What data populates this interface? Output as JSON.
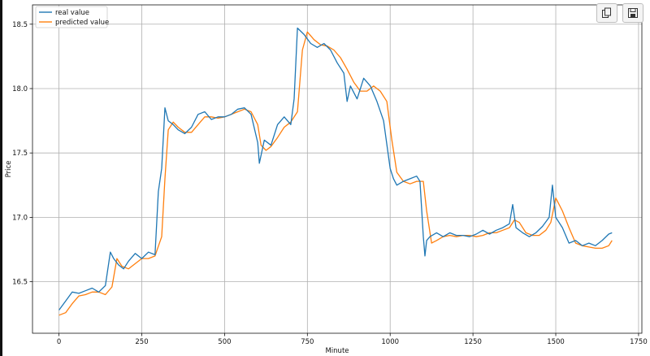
{
  "toolbar": {
    "copy_icon": "copy-icon",
    "save_icon": "save-icon"
  },
  "chart_data": {
    "type": "line",
    "title": "",
    "xlabel": "Minute",
    "ylabel": "Price",
    "xlim": [
      -80,
      1760
    ],
    "ylim": [
      16.1,
      18.65
    ],
    "xticks": [
      0,
      250,
      500,
      750,
      1000,
      1250,
      1500,
      1750
    ],
    "xtick_labels": [
      "0",
      "250",
      "500",
      "750",
      "1000",
      "1250",
      "1500",
      "1750"
    ],
    "yticks": [
      16.5,
      17.0,
      17.5,
      18.0,
      18.5
    ],
    "ytick_labels": [
      "16.5",
      "17.0",
      "17.5",
      "18.0",
      "18.5"
    ],
    "grid": true,
    "legend_position": "top-left",
    "series": [
      {
        "name": "real value",
        "color": "#1f77b4",
        "x": [
          0,
          20,
          40,
          60,
          80,
          100,
          120,
          140,
          155,
          165,
          180,
          195,
          210,
          230,
          250,
          270,
          290,
          300,
          310,
          320,
          330,
          345,
          360,
          380,
          400,
          420,
          440,
          460,
          480,
          500,
          520,
          540,
          560,
          580,
          600,
          605,
          620,
          640,
          660,
          680,
          700,
          710,
          720,
          740,
          760,
          780,
          800,
          820,
          840,
          860,
          870,
          880,
          900,
          920,
          940,
          960,
          980,
          1000,
          1010,
          1020,
          1040,
          1060,
          1080,
          1090,
          1100,
          1105,
          1110,
          1120,
          1140,
          1160,
          1180,
          1200,
          1220,
          1240,
          1260,
          1280,
          1300,
          1320,
          1340,
          1360,
          1370,
          1380,
          1400,
          1420,
          1440,
          1460,
          1480,
          1490,
          1500,
          1520,
          1540,
          1560,
          1580,
          1600,
          1620,
          1640,
          1660,
          1670
        ],
        "y": [
          16.28,
          16.35,
          16.42,
          16.41,
          16.43,
          16.45,
          16.42,
          16.47,
          16.73,
          16.68,
          16.63,
          16.6,
          16.66,
          16.72,
          16.68,
          16.73,
          16.71,
          17.2,
          17.38,
          17.85,
          17.75,
          17.72,
          17.68,
          17.65,
          17.7,
          17.8,
          17.82,
          17.76,
          17.78,
          17.78,
          17.8,
          17.84,
          17.85,
          17.8,
          17.58,
          17.42,
          17.6,
          17.56,
          17.72,
          17.78,
          17.72,
          17.92,
          18.47,
          18.42,
          18.35,
          18.32,
          18.35,
          18.3,
          18.2,
          18.12,
          17.9,
          18.02,
          17.92,
          18.08,
          18.02,
          17.9,
          17.75,
          17.38,
          17.3,
          17.25,
          17.28,
          17.3,
          17.32,
          17.28,
          16.85,
          16.7,
          16.82,
          16.85,
          16.88,
          16.85,
          16.88,
          16.86,
          16.86,
          16.85,
          16.87,
          16.9,
          16.87,
          16.9,
          16.92,
          16.95,
          17.1,
          16.92,
          16.88,
          16.85,
          16.88,
          16.93,
          17.0,
          17.25,
          17.0,
          16.92,
          16.8,
          16.82,
          16.78,
          16.8,
          16.78,
          16.82,
          16.87,
          16.88
        ]
      },
      {
        "name": "predicted value",
        "color": "#ff7f0e",
        "x": [
          0,
          20,
          40,
          60,
          80,
          100,
          120,
          140,
          160,
          175,
          190,
          210,
          230,
          250,
          270,
          290,
          310,
          320,
          330,
          345,
          360,
          380,
          400,
          420,
          440,
          460,
          480,
          500,
          520,
          540,
          560,
          580,
          600,
          610,
          625,
          640,
          660,
          680,
          700,
          720,
          735,
          750,
          770,
          790,
          810,
          830,
          850,
          870,
          890,
          910,
          930,
          950,
          970,
          990,
          1005,
          1020,
          1040,
          1060,
          1080,
          1100,
          1110,
          1125,
          1140,
          1160,
          1180,
          1200,
          1220,
          1240,
          1260,
          1280,
          1300,
          1320,
          1340,
          1360,
          1375,
          1390,
          1410,
          1430,
          1450,
          1470,
          1485,
          1500,
          1520,
          1540,
          1560,
          1580,
          1600,
          1620,
          1640,
          1660,
          1670
        ],
        "y": [
          16.24,
          16.26,
          16.33,
          16.39,
          16.4,
          16.42,
          16.42,
          16.4,
          16.46,
          16.68,
          16.62,
          16.6,
          16.64,
          16.68,
          16.68,
          16.7,
          16.85,
          17.3,
          17.68,
          17.74,
          17.7,
          17.66,
          17.66,
          17.72,
          17.78,
          17.78,
          17.77,
          17.78,
          17.8,
          17.82,
          17.84,
          17.82,
          17.72,
          17.56,
          17.52,
          17.55,
          17.62,
          17.7,
          17.74,
          17.82,
          18.3,
          18.44,
          18.38,
          18.34,
          18.33,
          18.3,
          18.24,
          18.15,
          18.05,
          17.98,
          17.98,
          18.02,
          17.98,
          17.9,
          17.6,
          17.35,
          17.28,
          17.26,
          17.28,
          17.28,
          17.05,
          16.8,
          16.82,
          16.85,
          16.86,
          16.85,
          16.86,
          16.86,
          16.85,
          16.86,
          16.88,
          16.88,
          16.9,
          16.92,
          16.98,
          16.96,
          16.88,
          16.86,
          16.86,
          16.9,
          16.96,
          17.15,
          17.05,
          16.92,
          16.8,
          16.78,
          16.77,
          16.76,
          16.76,
          16.78,
          16.82
        ]
      }
    ]
  }
}
